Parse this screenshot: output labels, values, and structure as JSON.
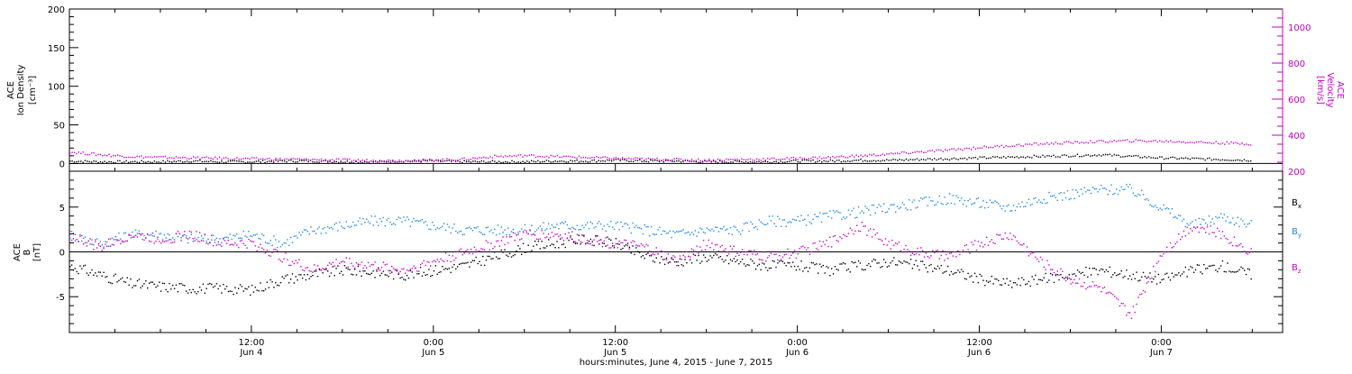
{
  "chart_data": [
    {
      "type": "scatter",
      "name": "ion-density-velocity-panel",
      "ylabel_left": [
        "ACE",
        "Ion Density",
        "[cm⁻³]"
      ],
      "ylabel_right": [
        "ACE",
        "Velocity",
        "[km/s]"
      ],
      "ylim_left": [
        -10,
        200
      ],
      "ylim_right": [
        200,
        1100
      ],
      "yticks_left": [
        0,
        50,
        100,
        150,
        200
      ],
      "yticks_right": [
        200,
        400,
        600,
        800,
        1000
      ],
      "zero_line": 0,
      "series": [
        {
          "name": "Ion Density",
          "axis": "left",
          "color": "#000000",
          "x": [
            0,
            2,
            4,
            6,
            8,
            10,
            12,
            14,
            16,
            18,
            20,
            22,
            24,
            26,
            28,
            30,
            32,
            34,
            36,
            38,
            40,
            42,
            44,
            46,
            48,
            50,
            52,
            54,
            56,
            58,
            60,
            62,
            64,
            66,
            68,
            70,
            72,
            74,
            76,
            78
          ],
          "y": [
            4,
            3,
            3,
            3,
            4,
            3,
            3,
            4,
            4,
            3,
            3,
            4,
            4,
            3,
            3,
            3,
            4,
            4,
            5,
            4,
            4,
            3,
            3,
            3,
            4,
            4,
            5,
            5,
            6,
            7,
            8,
            9,
            10,
            11,
            12,
            10,
            8,
            7,
            6,
            5
          ]
        },
        {
          "name": "Velocity",
          "axis": "right",
          "color": "#cc00cc",
          "x": [
            0,
            2,
            4,
            6,
            8,
            10,
            12,
            14,
            16,
            18,
            20,
            22,
            24,
            26,
            28,
            30,
            32,
            34,
            36,
            38,
            40,
            42,
            44,
            46,
            48,
            50,
            52,
            54,
            56,
            58,
            60,
            62,
            64,
            66,
            68,
            70,
            72,
            74,
            76,
            78
          ],
          "y": [
            310,
            295,
            285,
            280,
            278,
            275,
            272,
            270,
            268,
            265,
            262,
            262,
            265,
            270,
            285,
            290,
            285,
            280,
            275,
            270,
            268,
            265,
            268,
            270,
            275,
            280,
            288,
            298,
            310,
            320,
            335,
            345,
            355,
            362,
            368,
            372,
            370,
            365,
            360,
            355
          ]
        }
      ]
    },
    {
      "type": "scatter",
      "name": "imf-panel",
      "ylabel": [
        "ACE",
        "B",
        "[nT]"
      ],
      "ylim": [
        -9,
        9
      ],
      "yticks": [
        -5,
        0,
        5
      ],
      "zero_line": 0,
      "legend_position": "right",
      "series": [
        {
          "name": "B",
          "sub": "x",
          "color": "#000000",
          "x": [
            0,
            2,
            4,
            6,
            8,
            10,
            12,
            14,
            16,
            18,
            20,
            22,
            24,
            26,
            28,
            30,
            32,
            34,
            36,
            38,
            40,
            42,
            44,
            46,
            48,
            50,
            52,
            54,
            56,
            58,
            60,
            62,
            64,
            66,
            68,
            70,
            72,
            74,
            76,
            78
          ],
          "y": [
            -1.5,
            -2.5,
            -3.5,
            -3.8,
            -4,
            -4,
            -4.2,
            -3,
            -2.5,
            -2,
            -2.2,
            -2.5,
            -2,
            -1.5,
            -0.5,
            0.5,
            1,
            1.5,
            1,
            -0.5,
            -1,
            -0.5,
            -1,
            -1.5,
            -1.5,
            -2,
            -1.5,
            -1,
            -1.5,
            -2,
            -3,
            -3.5,
            -3,
            -2.5,
            -2,
            -2.5,
            -3,
            -2,
            -1.5,
            -2.5
          ]
        },
        {
          "name": "B",
          "sub": "y",
          "color": "#1e88e5",
          "x": [
            0,
            2,
            4,
            6,
            8,
            10,
            12,
            14,
            16,
            18,
            20,
            22,
            24,
            26,
            28,
            30,
            32,
            34,
            36,
            38,
            40,
            42,
            44,
            46,
            48,
            50,
            52,
            54,
            56,
            58,
            60,
            62,
            64,
            66,
            68,
            70,
            72,
            74,
            76,
            78
          ],
          "y": [
            2,
            1,
            2,
            2,
            1.5,
            1.5,
            2,
            1,
            2.5,
            3,
            3.5,
            3.5,
            3,
            2.5,
            2.5,
            2.5,
            3,
            3,
            3,
            2.5,
            2,
            2.5,
            2.5,
            3.5,
            3.5,
            4,
            4.5,
            5,
            5.5,
            6,
            5.5,
            5,
            6,
            6.5,
            7,
            7,
            5,
            3,
            4,
            3
          ]
        },
        {
          "name": "B",
          "sub": "z",
          "color": "#cc00cc",
          "x": [
            0,
            2,
            4,
            6,
            8,
            10,
            12,
            14,
            16,
            18,
            20,
            22,
            24,
            26,
            28,
            30,
            32,
            34,
            36,
            38,
            40,
            42,
            44,
            46,
            48,
            50,
            52,
            54,
            56,
            58,
            60,
            62,
            64,
            66,
            68,
            70,
            72,
            74,
            76,
            78
          ],
          "y": [
            2,
            0.5,
            2,
            1.5,
            2,
            1,
            1,
            -0.5,
            -2,
            -1,
            -1.5,
            -2,
            -1,
            0,
            1,
            2,
            2,
            1.5,
            1,
            0.5,
            -1,
            1,
            0,
            -0.5,
            0,
            1,
            3,
            1,
            0,
            -0.5,
            1,
            2,
            -1,
            -3,
            -4,
            -7,
            0,
            3,
            2,
            0
          ]
        }
      ]
    }
  ],
  "x_axis": {
    "range_hours": [
      0,
      80
    ],
    "major_ticks": [
      {
        "h": 12,
        "time": "12:00",
        "date": "Jun 4"
      },
      {
        "h": 24,
        "time": "0:00",
        "date": "Jun 5"
      },
      {
        "h": 36,
        "time": "12:00",
        "date": "Jun 5"
      },
      {
        "h": 48,
        "time": "0:00",
        "date": "Jun 6"
      },
      {
        "h": 60,
        "time": "12:00",
        "date": "Jun 6"
      },
      {
        "h": 72,
        "time": "0:00",
        "date": "Jun 7"
      }
    ],
    "xlabel": "hours:minutes, June  4, 2015 - June  7, 2015"
  }
}
